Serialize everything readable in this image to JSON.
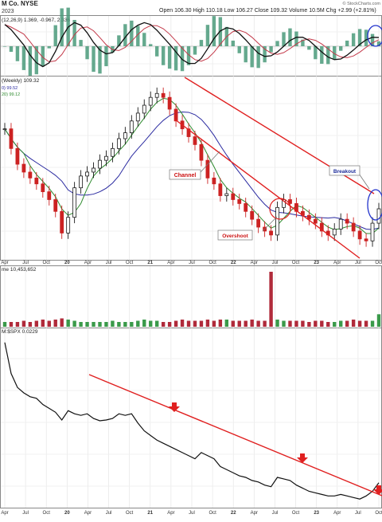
{
  "header": {
    "symbol_line": "M Co. NYSE",
    "date_line": "2023",
    "ohlc": "Open 106.30 High 110.18 Low 106.27 Close 109.32 Volume 10.5M Chg +2.99 (+2.81%)",
    "watermark": "© StockCharts.com"
  },
  "panels": {
    "macd_label": "(12,26,9) 1.369, -0.967, 2.336",
    "price_label": "(Weekly) 109.32",
    "ma_label_1": "0) 99.52",
    "ma_label_2": "20) 99.12",
    "volume_label": "me 10,453,652",
    "ratio_label": "M:$SPX 0.0229"
  },
  "annotations": {
    "channel": "Channel",
    "overshoot": "Overshoot",
    "breakout": "Breakout"
  },
  "x_axis_labels": [
    "Apr",
    "Jul",
    "Oct",
    "20",
    "Apr",
    "Jul",
    "Oct",
    "21",
    "Apr",
    "Jul",
    "Oct",
    "22",
    "Apr",
    "Jul",
    "Oct",
    "23",
    "Apr",
    "Jul",
    "Oct"
  ],
  "colors": {
    "price_up": "#1a1a1a",
    "price_down": "#cc2222",
    "sma_fast": "#2e8b2e",
    "sma_slow": "#2a2aa0",
    "trendline": "#e02020",
    "annotation_text": "#cc1111",
    "breakout_text": "#1a2a99",
    "volume_up": "#3a9a4a",
    "volume_down": "#b02a3a",
    "macd_line": "#111111",
    "signal_line": "#c43a4a",
    "histogram": "#4a9a7a",
    "circle_blue": "#2233cc"
  },
  "chart_data": [
    {
      "type": "line",
      "panel": "macd",
      "series": [
        {
          "values": [
            3.4,
            2.6,
            1.4,
            0.2,
            -1.4,
            -2.6,
            -3.2,
            -2.6,
            -0.8,
            1.4,
            3.0,
            3.7,
            3.3,
            2.1,
            0.6,
            -0.6,
            -1.2,
            -1.0,
            0.1,
            1.4,
            2.6,
            3.3,
            3.7,
            3.4,
            2.5,
            1.4,
            0.3,
            -0.9,
            -2.1,
            -2.7,
            -2.7,
            -1.9,
            -0.4,
            1.2,
            2.4,
            2.9,
            2.7,
            2.0,
            1.0,
            -0.1,
            -1.1,
            -1.6,
            -1.5,
            -0.9,
            0.0,
            0.9,
            1.4,
            1.4,
            0.9,
            0.0,
            -0.9,
            -1.7,
            -2.1,
            -2.0,
            -1.4,
            -0.6,
            0.3,
            1.0,
            1.4,
            1.37
          ]
        }
      ]
    },
    {
      "type": "line",
      "panel": "price",
      "series": [
        {
          "values": [
            150,
            140,
            132,
            128,
            125,
            122,
            118,
            114,
            108,
            97,
            105,
            120,
            126,
            128,
            130,
            134,
            136,
            140,
            145,
            148,
            154,
            158,
            162,
            166,
            168,
            166,
            160,
            154,
            150,
            146,
            142,
            134,
            125,
            122,
            116,
            117,
            114,
            112,
            108,
            104,
            100,
            98,
            96,
            110,
            114,
            112,
            108,
            106,
            104,
            102,
            98,
            96,
            99,
            104,
            102,
            98,
            94,
            93,
            102,
            109.32
          ]
        }
      ]
    },
    {
      "type": "bar",
      "panel": "volume",
      "values": [
        4,
        4,
        4,
        5,
        4,
        5,
        6,
        5,
        6,
        7,
        6,
        5,
        4,
        4,
        4,
        4,
        4,
        5,
        4,
        4,
        4,
        5,
        6,
        5,
        5,
        4,
        4,
        5,
        6,
        5,
        5,
        5,
        6,
        5,
        6,
        6,
        5,
        5,
        5,
        6,
        5,
        5,
        46,
        6,
        5,
        5,
        5,
        5,
        4,
        5,
        5,
        4,
        4,
        5,
        5,
        6,
        5,
        5,
        5,
        10.45
      ]
    },
    {
      "type": "line",
      "panel": "ratio",
      "series": [
        {
          "values": [
            0.041,
            0.037,
            0.0352,
            0.0345,
            0.034,
            0.0338,
            0.033,
            0.0325,
            0.032,
            0.031,
            0.0322,
            0.0318,
            0.0316,
            0.0318,
            0.0312,
            0.0309,
            0.031,
            0.0312,
            0.0318,
            0.0316,
            0.0318,
            0.0306,
            0.0296,
            0.029,
            0.0284,
            0.028,
            0.0276,
            0.0272,
            0.0268,
            0.0264,
            0.026,
            0.0268,
            0.0264,
            0.026,
            0.025,
            0.0246,
            0.0242,
            0.0238,
            0.0236,
            0.0232,
            0.023,
            0.0226,
            0.0224,
            0.0236,
            0.0234,
            0.0232,
            0.0226,
            0.0222,
            0.0218,
            0.0216,
            0.0214,
            0.0212,
            0.0212,
            0.0214,
            0.0212,
            0.021,
            0.0208,
            0.0212,
            0.0218,
            0.0229
          ]
        }
      ]
    }
  ]
}
